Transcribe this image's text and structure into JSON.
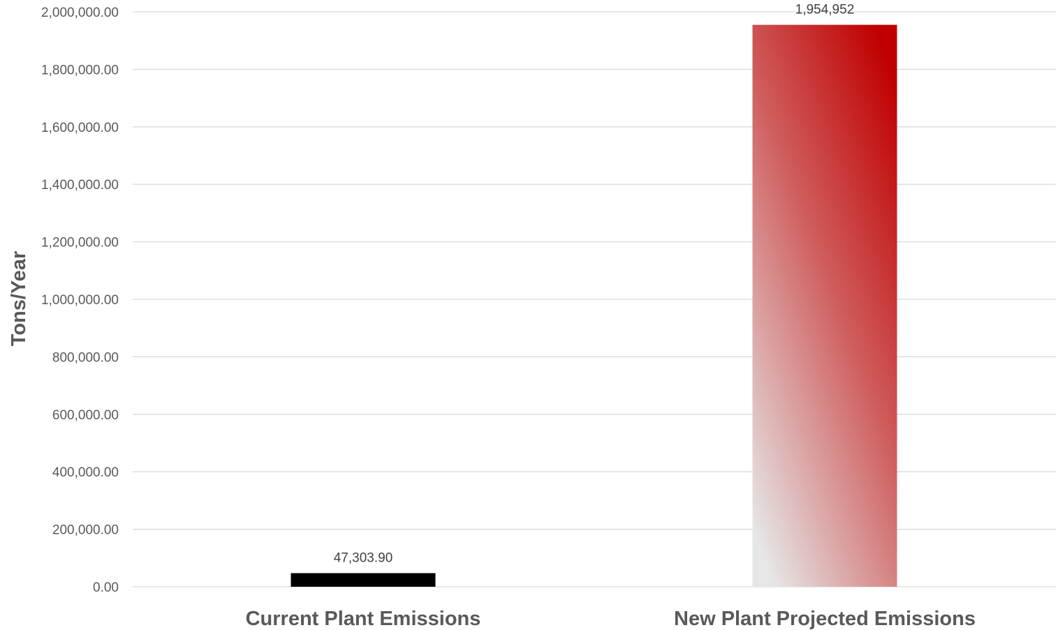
{
  "chart_data": {
    "type": "bar",
    "title": "",
    "xlabel": "",
    "ylabel": "Tons/Year",
    "ylim": [
      0,
      2000000
    ],
    "ytick_step": 200000,
    "yticks": [
      "0.00",
      "200,000.00",
      "400,000.00",
      "600,000.00",
      "800,000.00",
      "1,000,000.00",
      "1,200,000.00",
      "1,400,000.00",
      "1,600,000.00",
      "1,800,000.00",
      "2,000,000.00"
    ],
    "grid": true,
    "legend": "none",
    "categories": [
      "Current Plant Emissions",
      "New Plant Projected Emissions"
    ],
    "values": [
      47303.9,
      1954952
    ],
    "data_labels": [
      "47,303.90",
      "1,954,952"
    ],
    "colors": {
      "bar_1": "#000000",
      "bar_2_top": "#c00000",
      "bar_2_bottom": "#e6e6e6"
    }
  }
}
